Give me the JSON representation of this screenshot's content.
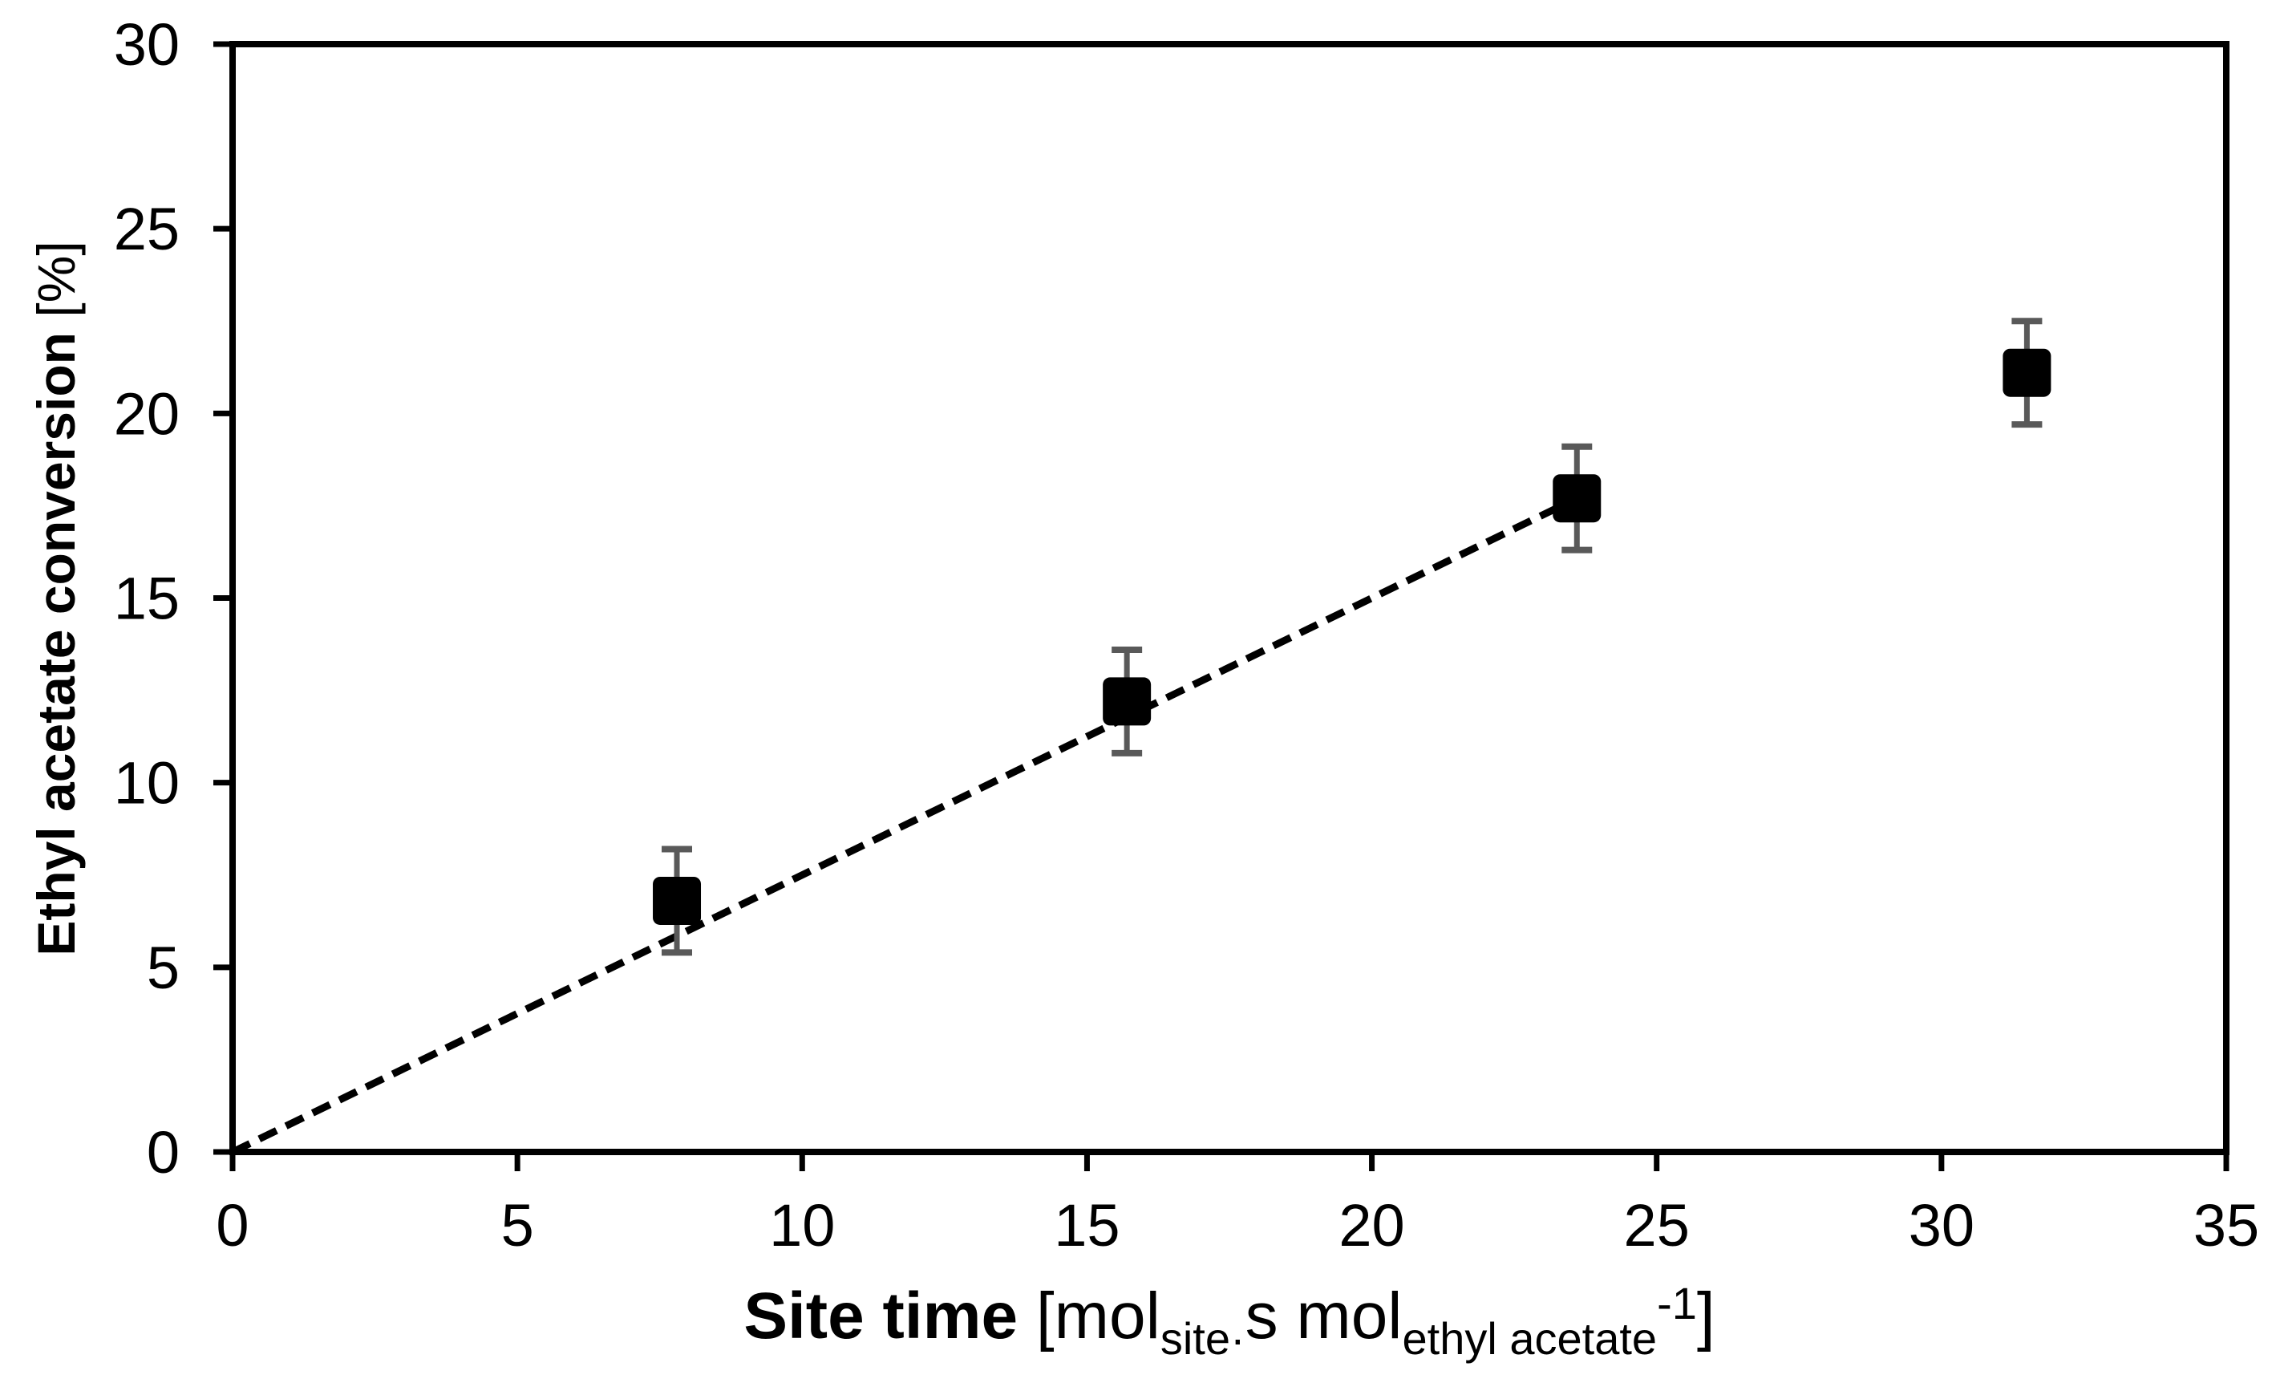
{
  "figure": {
    "background": "#ffffff",
    "axis_color": "#000000",
    "marker_color": "#000000",
    "trendline_color": "#000000",
    "error_bar_color": "#595959"
  },
  "chart_data": {
    "type": "scatter",
    "title": "",
    "xlabel_plain": "Site time [mol site · s mol ethyl acetate -1 ]",
    "ylabel_plain": "Ethyl acetate conversion [%]",
    "xlabel_segments": [
      {
        "t": "Site time",
        "bold": true
      },
      {
        "t": " [mol"
      },
      {
        "t": "site·",
        "sub": true
      },
      {
        "t": "s mol"
      },
      {
        "t": "ethyl acetate",
        "sub": true
      },
      {
        "t": "-1",
        "sup": true
      },
      {
        "t": "]"
      }
    ],
    "ylabel_segments": [
      {
        "t": "Ethyl acetate conversion",
        "bold": true
      },
      {
        "t": " [%]"
      }
    ],
    "xlim": [
      0,
      35
    ],
    "ylim": [
      0,
      30
    ],
    "xticks": [
      0,
      5,
      10,
      15,
      20,
      25,
      30,
      35
    ],
    "yticks": [
      0,
      5,
      10,
      15,
      20,
      25,
      30
    ],
    "grid": false,
    "legend_position": "none",
    "series": [
      {
        "name": "ethyl-acetate-conversion",
        "marker": "square",
        "x": [
          7.8,
          15.7,
          23.6,
          31.5
        ],
        "y": [
          6.8,
          12.2,
          17.7,
          21.1
        ],
        "y_err": [
          1.4,
          1.4,
          1.4,
          1.4
        ]
      }
    ],
    "trendline": {
      "style": "dashed",
      "x": [
        0,
        23.6
      ],
      "y": [
        0,
        17.7
      ]
    }
  }
}
